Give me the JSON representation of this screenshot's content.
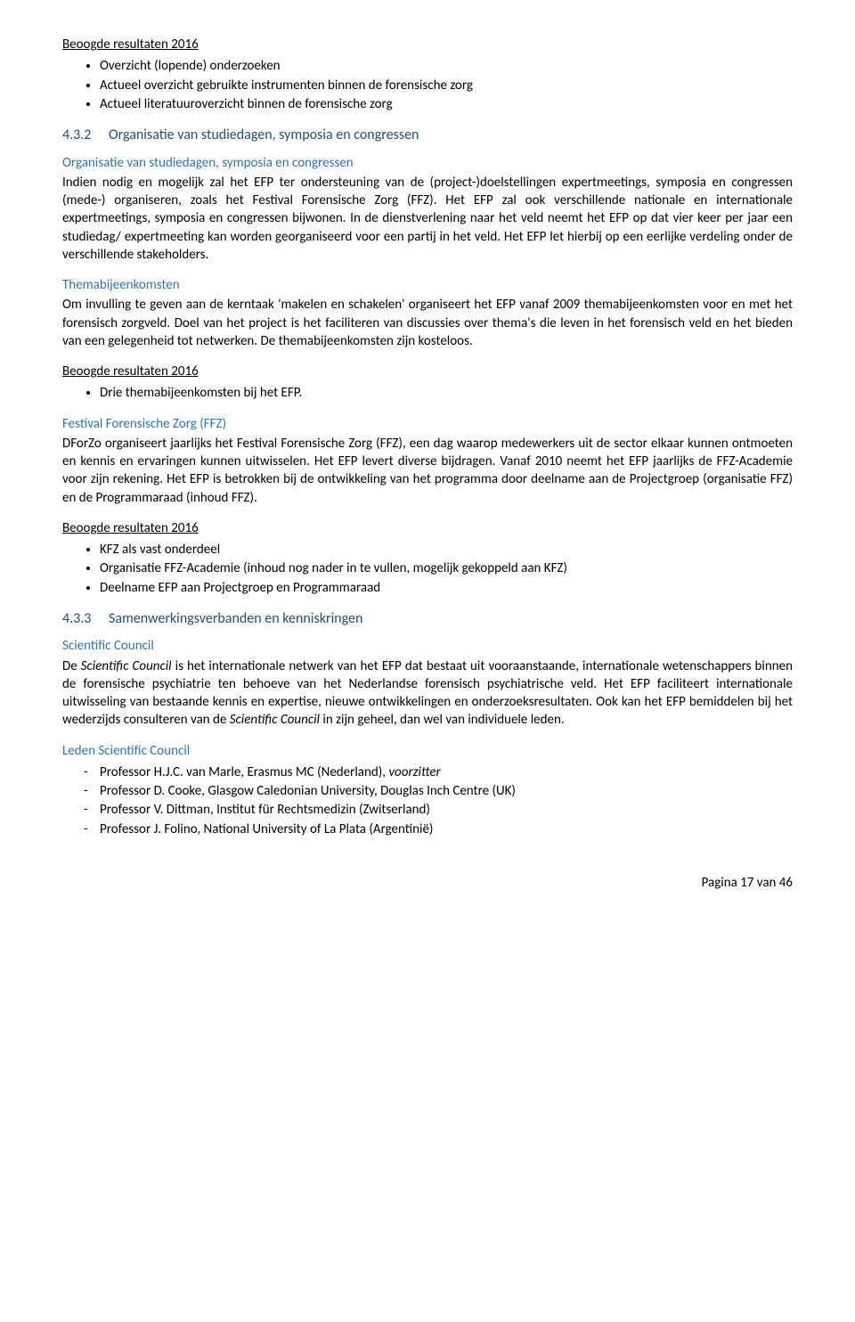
{
  "colors": {
    "text": "#000000",
    "heading_blue_dark": "#1f4e79",
    "heading_blue_light": "#2e74b5",
    "background": "#ffffff"
  },
  "typography": {
    "body_fontsize": 15,
    "heading_fontsize": 16,
    "subheading_fontsize": 15,
    "font_family": "Calibri"
  },
  "sec1": {
    "title": "Beoogde resultaten 2016",
    "b1": "Overzicht (lopende) onderzoeken",
    "b2": "Actueel overzicht gebruikte instrumenten binnen de forensische zorg",
    "b3": "Actueel literatuuroverzicht binnen de forensische zorg"
  },
  "h432": {
    "num": "4.3.2",
    "title": "Organisatie van studiedagen, symposia en congressen"
  },
  "org": {
    "title": "Organisatie van studiedagen, symposia en congressen",
    "p1": "Indien nodig en mogelijk zal het EFP ter ondersteuning van de (project-)doelstellingen expertmeetings, symposia en congressen (mede-) organiseren, zoals het Festival Forensische Zorg (FFZ). Het EFP zal ook verschillende nationale en internationale expertmeetings, symposia en congressen bijwonen. In de dienstverlening naar het veld neemt het EFP op dat vier keer per jaar een studiedag/ expertmeeting kan worden georganiseerd voor een partij in het veld. Het EFP let hierbij op een eerlijke verdeling onder de verschillende stakeholders."
  },
  "thema": {
    "title": "Themabijeenkomsten",
    "p1": "Om invulling te geven aan de kerntaak 'makelen en schakelen' organiseert het EFP vanaf 2009 themabijeenkomsten voor en met het forensisch zorgveld. Doel van het project is het faciliteren van discussies over thema's die leven in het forensisch veld en het bieden van een gelegenheid tot netwerken. De themabijeenkomsten zijn kosteloos."
  },
  "sec2": {
    "title": "Beoogde resultaten 2016",
    "b1": "Drie themabijeenkomsten bij het EFP."
  },
  "ffz": {
    "title": "Festival Forensische Zorg (FFZ)",
    "p1": "DForZo organiseert jaarlijks het Festival Forensische Zorg (FFZ), een dag waarop medewerkers uit de sector elkaar kunnen ontmoeten en kennis en ervaringen kunnen uitwisselen. Het EFP levert diverse bijdragen. Vanaf 2010 neemt het EFP jaarlijks de FFZ-Academie voor zijn rekening. Het EFP is betrokken bij de ontwikkeling van het programma door deelname aan de Projectgroep (organisatie FFZ) en de Programmaraad (inhoud FFZ)."
  },
  "sec3": {
    "title": "Beoogde resultaten 2016",
    "b1": "KFZ als vast onderdeel",
    "b2": "Organisatie FFZ-Academie (inhoud nog nader in te vullen, mogelijk gekoppeld aan KFZ)",
    "b3": "Deelname EFP aan Projectgroep en Programmaraad"
  },
  "h433": {
    "num": "4.3.3",
    "title": "Samenwerkingsverbanden en kenniskringen"
  },
  "sci": {
    "title": "Scientific Council",
    "p1a": "De ",
    "p1b": "Scientific Council",
    "p1c": " is het internationale netwerk van het EFP dat bestaat uit vooraanstaande, internationale wetenschappers binnen de forensische psychiatrie ten behoeve van het Nederlandse forensisch psychiatrische veld. Het EFP faciliteert internationale uitwisseling van bestaande kennis en expertise, nieuwe ontwikkelingen en onderzoeksresultaten. Ook kan het EFP bemiddelen bij het wederzijds consulteren van de ",
    "p1d": "Scientific Council",
    "p1e": " in zijn geheel, dan wel van individuele leden."
  },
  "leden": {
    "title": "Leden Scientific Council",
    "l1a": "Professor H.J.C. van Marle, Erasmus MC (Nederland), ",
    "l1b": "voorzitter",
    "l2": "Professor D. Cooke, Glasgow Caledonian University, Douglas Inch Centre (UK)",
    "l3": "Professor V. Dittman, Institut für Rechtsmedizin (Zwitserland)",
    "l4": "Professor J. Folino, National University of La Plata (Argentinië)"
  },
  "footer": {
    "text": "Pagina 17 van 46"
  }
}
